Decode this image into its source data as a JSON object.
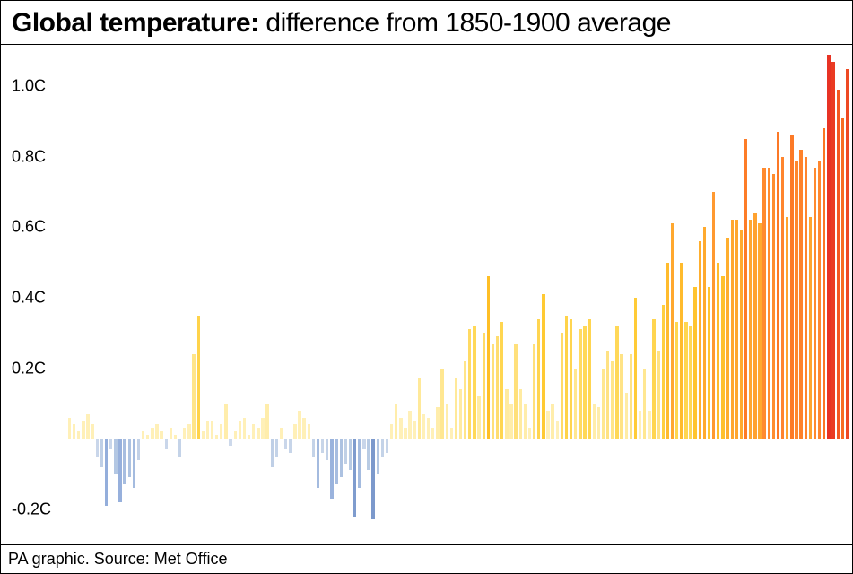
{
  "title_bold": "Global temperature:",
  "title_rest": " difference from 1850-1900 average",
  "source": "PA graphic. Source: Met Office",
  "chart": {
    "type": "bar",
    "ylim": [
      -0.3,
      1.12
    ],
    "ytick_values": [
      -0.2,
      0.2,
      0.4,
      0.6,
      0.8,
      1.0
    ],
    "ytick_labels": [
      "-0.2C",
      "0.2C",
      "0.4C",
      "0.6C",
      "0.8C",
      "1.0C"
    ],
    "baseline": 0,
    "bar_gap_ratio": 0.35,
    "background_color": "#ffffff",
    "baseline_color": "#7a7a7a",
    "label_fontsize": 18,
    "title_fontsize": 30,
    "values": [
      0.06,
      0.04,
      0.02,
      0.05,
      0.07,
      0.04,
      -0.05,
      -0.08,
      -0.19,
      -0.03,
      -0.1,
      -0.18,
      -0.13,
      -0.11,
      -0.14,
      -0.06,
      0.02,
      0.01,
      0.03,
      0.04,
      0.02,
      -0.03,
      0.03,
      0.01,
      -0.05,
      0.03,
      0.04,
      0.24,
      0.35,
      0.02,
      0.05,
      0.05,
      0.01,
      0.04,
      0.1,
      -0.02,
      0.02,
      0.05,
      0.06,
      0.01,
      0.04,
      0.03,
      0.06,
      0.1,
      -0.08,
      -0.05,
      0.03,
      -0.03,
      -0.04,
      0.04,
      0.08,
      0.06,
      0.04,
      -0.05,
      -0.14,
      -0.04,
      -0.06,
      -0.17,
      -0.13,
      -0.11,
      -0.07,
      -0.09,
      -0.22,
      -0.14,
      -0.03,
      -0.09,
      -0.23,
      -0.1,
      -0.05,
      -0.04,
      0.04,
      0.1,
      0.06,
      0.03,
      0.08,
      0.05,
      0.17,
      0.07,
      0.06,
      0.03,
      0.09,
      0.2,
      0.1,
      0.03,
      0.17,
      0.14,
      0.22,
      0.31,
      0.32,
      0.12,
      0.3,
      0.46,
      0.27,
      0.29,
      0.33,
      0.14,
      0.1,
      0.27,
      0.14,
      0.1,
      0.03,
      0.27,
      0.34,
      0.41,
      0.08,
      0.1,
      0.05,
      0.3,
      0.35,
      0.34,
      0.2,
      0.31,
      0.32,
      0.34,
      0.1,
      0.09,
      0.2,
      0.25,
      0.22,
      0.32,
      0.24,
      0.13,
      0.24,
      0.4,
      0.08,
      0.2,
      0.08,
      0.34,
      0.25,
      0.38,
      0.5,
      0.61,
      0.33,
      0.5,
      0.33,
      0.32,
      0.43,
      0.56,
      0.6,
      0.43,
      0.7,
      0.5,
      0.46,
      0.57,
      0.62,
      0.62,
      0.59,
      0.85,
      0.62,
      0.64,
      0.61,
      0.77,
      0.77,
      0.75,
      0.87,
      0.8,
      0.63,
      0.86,
      0.79,
      0.82,
      0.8,
      0.63,
      0.77,
      0.79,
      0.88,
      1.09,
      1.07,
      0.99,
      0.91,
      1.05
    ],
    "colors": [
      "#fff0b8",
      "#fff0b8",
      "#fff0b8",
      "#fff0b8",
      "#fff0b8",
      "#fff0b8",
      "#c9d6ea",
      "#bfcfe6",
      "#94aedb",
      "#c9d6ea",
      "#b3c7e3",
      "#97b0dc",
      "#a7bde0",
      "#adc2e1",
      "#a4bbdf",
      "#c2d1e7",
      "#fff0b8",
      "#fff0b8",
      "#fff0b8",
      "#fff0b8",
      "#fff0b8",
      "#c9d6ea",
      "#fff0b8",
      "#fff0b8",
      "#c4d3e8",
      "#fff0b8",
      "#fff0b8",
      "#ffe589",
      "#ffd34a",
      "#fff0b8",
      "#fff0b8",
      "#fff0b8",
      "#fff0b8",
      "#fff0b8",
      "#ffedab",
      "#cdd9eb",
      "#fff0b8",
      "#fff0b8",
      "#fff0b8",
      "#fff0b8",
      "#fff0b8",
      "#fff0b8",
      "#fff0b8",
      "#ffedab",
      "#bfcfe6",
      "#c4d3e8",
      "#fff0b8",
      "#c9d6ea",
      "#c7d5e9",
      "#fff0b8",
      "#fff0b8",
      "#fff0b8",
      "#fff0b8",
      "#c4d3e8",
      "#a4bbdf",
      "#c7d5e9",
      "#c2d1e7",
      "#9ab3dd",
      "#a7bde0",
      "#adc2e1",
      "#c0d0e6",
      "#b8cbe4",
      "#7f9cce",
      "#a4bbdf",
      "#c9d6ea",
      "#b8cbe4",
      "#7c99cc",
      "#b3c7e3",
      "#c4d3e8",
      "#c7d5e9",
      "#fff0b8",
      "#ffedab",
      "#fff0b8",
      "#fff0b8",
      "#fff0b8",
      "#fff0b8",
      "#ffe999",
      "#fff0b8",
      "#fff0b8",
      "#fff0b8",
      "#ffedab",
      "#ffe791",
      "#ffedab",
      "#fff0b8",
      "#ffe999",
      "#ffeba1",
      "#ffe589",
      "#ffda63",
      "#ffd858",
      "#ffeca6",
      "#ffdb68",
      "#ffbf26",
      "#ffe07b",
      "#ffdd70",
      "#ffd650",
      "#ffeba1",
      "#ffedab",
      "#ffe07b",
      "#ffeba1",
      "#ffedab",
      "#fff0b8",
      "#ffe07b",
      "#ffd550",
      "#ffca33",
      "#fff0b8",
      "#ffedab",
      "#fff0b8",
      "#ffdb68",
      "#ffd34a",
      "#ffd550",
      "#ffe791",
      "#ffda63",
      "#ffd858",
      "#ffd550",
      "#ffedab",
      "#ffedab",
      "#ffe791",
      "#ffe283",
      "#ffe589",
      "#ffd858",
      "#ffe385",
      "#ffeca6",
      "#ffe385",
      "#ffcb37",
      "#fff0b8",
      "#ffe791",
      "#fff0b8",
      "#ffd550",
      "#ffe283",
      "#ffcf40",
      "#ffbb2d",
      "#ffa82f",
      "#ffd650",
      "#ffbb2d",
      "#ffd650",
      "#ffd858",
      "#ffc42f",
      "#ffaf2e",
      "#ffaa2e",
      "#ffc42f",
      "#ff9930",
      "#ffbb2d",
      "#ffc02d",
      "#ffae2e",
      "#ffa62f",
      "#ffa62f",
      "#ffab2f",
      "#fd7c28",
      "#ffa62f",
      "#ffa22f",
      "#ffa82f",
      "#ff8a2f",
      "#ff8a2f",
      "#ff8d30",
      "#fc7926",
      "#ff852e",
      "#ffa42f",
      "#fc7a27",
      "#ff872e",
      "#fe822b",
      "#ff852e",
      "#ffa42f",
      "#ff8a2f",
      "#ff872e",
      "#fb7624",
      "#e83324",
      "#ea3b23",
      "#f35822",
      "#f86d23",
      "#ee4923"
    ]
  }
}
